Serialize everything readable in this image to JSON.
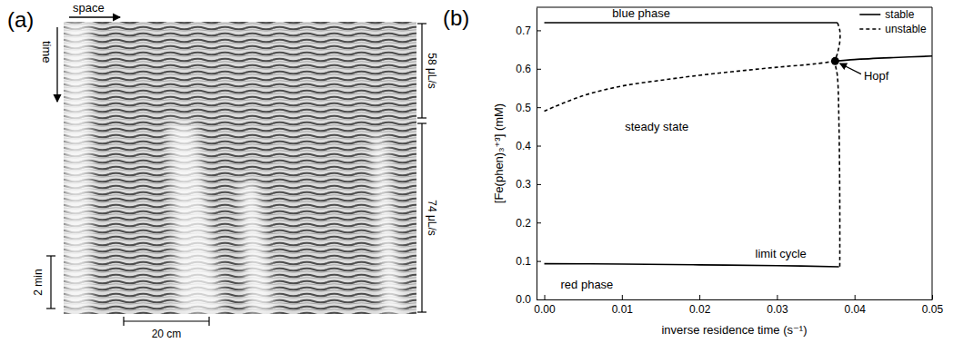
{
  "chart_data": [
    {
      "type": "spacetime",
      "label": "(a)",
      "x_label": "space",
      "y_label": "time",
      "annotations": [
        "58 μL/s",
        "74 μL/s"
      ],
      "scale_bars": [
        "2 min",
        "20 cm"
      ]
    },
    {
      "type": "line",
      "label": "(b)",
      "x_label": "inverse residence time  (s⁻¹)",
      "y_label": "[Fe(phen)₃⁺³] (mM)",
      "xlim": [
        -0.001,
        0.05
      ],
      "xticks": [
        {
          "value": 0,
          "label": "0.00"
        },
        0.01,
        0.02,
        0.03,
        0.04,
        0.05
      ],
      "ylim": [
        0,
        0.76
      ],
      "yticks": [
        {
          "value": 0,
          "label": "0.0"
        },
        0.1,
        0.2,
        0.3,
        0.4,
        0.5,
        0.6,
        0.7
      ],
      "legend": "upper right",
      "series": [
        {
          "name": "stable",
          "color": "#000000",
          "line_style": "solid",
          "x": [
            0,
            0.0378,
            null,
            0,
            0.01,
            0.02,
            0.03,
            0.038,
            null,
            0.0375,
            0.04,
            0.045,
            0.05
          ],
          "values": [
            0.72,
            0.72,
            null,
            0.093,
            0.092,
            0.09,
            0.088,
            0.085,
            null,
            0.62,
            0.624,
            0.629,
            0.633
          ]
        },
        {
          "name": "unstable",
          "color": "#000000",
          "line_style": "dashed",
          "x": [
            0,
            0.005,
            0.01,
            0.015,
            0.02,
            0.025,
            0.03,
            0.035,
            0.0375,
            null,
            0.0378,
            0.0381,
            0.0381,
            0.0378,
            0.0375,
            0.0378,
            0.038,
            0.0381,
            0.0381
          ],
          "values": [
            0.49,
            0.53,
            0.555,
            0.57,
            0.583,
            0.594,
            0.604,
            0.613,
            0.62,
            null,
            0.72,
            0.7,
            0.67,
            0.64,
            0.62,
            0.58,
            0.45,
            0.25,
            0.085
          ]
        }
      ],
      "points": [
        {
          "x": 0.0375,
          "y": 0.62,
          "label": "Hopf",
          "label_x": 0.0412,
          "label_y": 0.572
        }
      ],
      "annotations": [
        {
          "text": "blue phase",
          "x": 0.0125,
          "y": 0.735
        },
        {
          "text": "steady state",
          "x": 0.0145,
          "y": 0.44
        },
        {
          "text": "limit cycle",
          "x": 0.0305,
          "y": 0.109
        },
        {
          "text": "red phase",
          "x": 0.0055,
          "y": 0.028
        }
      ]
    }
  ]
}
